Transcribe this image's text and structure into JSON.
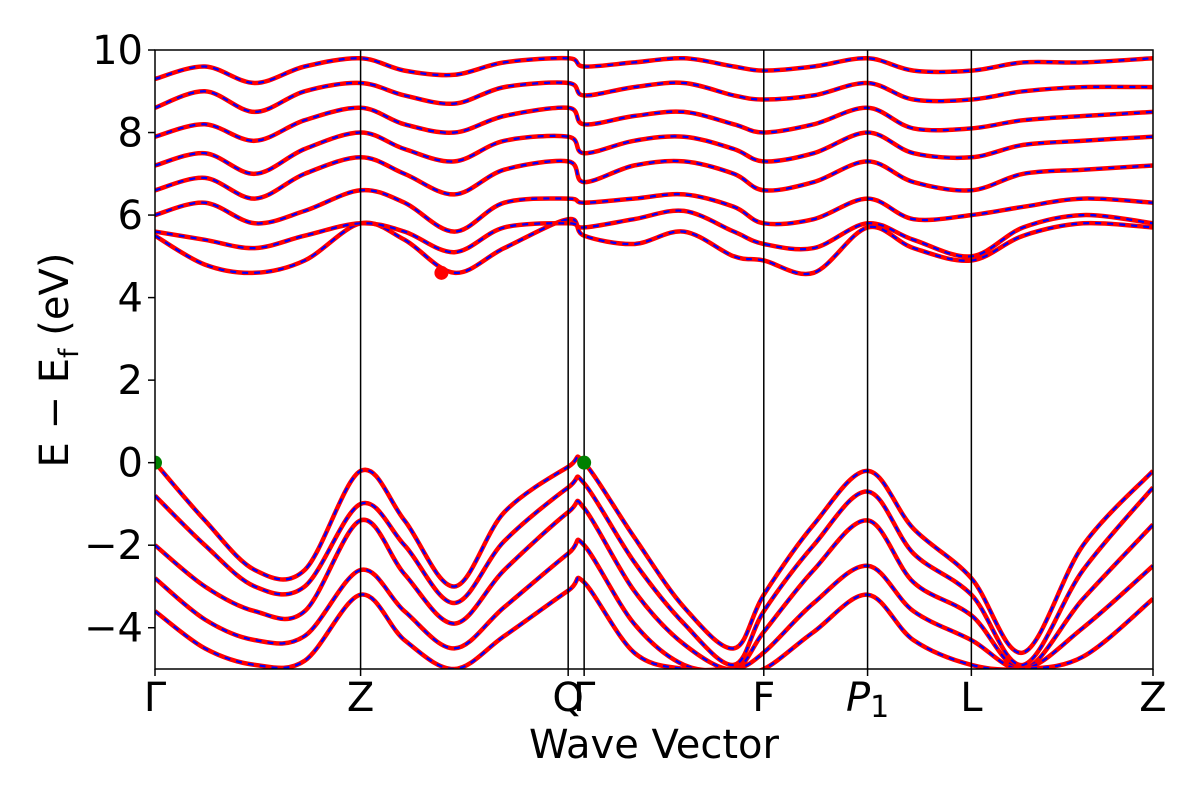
{
  "chart_data": {
    "type": "line",
    "title": "",
    "xlabel": "Wave Vector",
    "ylabel": "E − E_f (eV)",
    "ylabel_parts": {
      "main": "E − E",
      "sub": "f",
      "unit": " (eV)"
    },
    "ylim": [
      -5,
      10
    ],
    "yticks": [
      -4,
      -2,
      0,
      2,
      4,
      6,
      8,
      10
    ],
    "ytick_labels": [
      "−4",
      "−2",
      "0",
      "2",
      "4",
      "6",
      "8",
      "10"
    ],
    "kpath": [
      {
        "label": "Γ",
        "x": 0.0
      },
      {
        "label": "Z",
        "x": 0.206
      },
      {
        "label": "Q",
        "x": 0.414
      },
      {
        "label": "Γ",
        "x": 0.43
      },
      {
        "label": "F",
        "x": 0.61
      },
      {
        "label": "P",
        "label_sub": "1",
        "x": 0.714
      },
      {
        "label": "L",
        "x": 0.818
      },
      {
        "label": "Z",
        "x": 1.0
      }
    ],
    "series": [
      {
        "color": "#ff0000",
        "style": "solid"
      },
      {
        "color": "#0000ff",
        "style": "dashed"
      }
    ],
    "markers": [
      {
        "color": "#ff0000",
        "x": 0.287,
        "y": 4.6
      },
      {
        "color": "#008000",
        "x": 0.0,
        "y": 0.0
      },
      {
        "color": "#008000",
        "x": 0.43,
        "y": 0.0
      }
    ],
    "bands": [
      {
        "x": [
          0,
          0.05,
          0.1,
          0.15,
          0.206,
          0.25,
          0.3,
          0.35,
          0.414,
          0.43,
          0.48,
          0.53,
          0.58,
          0.61,
          0.66,
          0.714,
          0.76,
          0.818,
          0.87,
          0.93,
          1.0
        ],
        "y": [
          0.0,
          -1.4,
          -2.6,
          -2.6,
          -0.2,
          -1.4,
          -3.0,
          -1.2,
          -0.1,
          0.0,
          -1.8,
          -3.5,
          -4.5,
          -3.2,
          -1.5,
          -0.2,
          -1.6,
          -2.8,
          -4.6,
          -2.0,
          -0.2
        ]
      },
      {
        "x": [
          0,
          0.05,
          0.1,
          0.15,
          0.206,
          0.25,
          0.3,
          0.35,
          0.414,
          0.43,
          0.48,
          0.53,
          0.58,
          0.61,
          0.66,
          0.714,
          0.76,
          0.818,
          0.87,
          0.93,
          1.0
        ],
        "y": [
          -0.8,
          -2.0,
          -3.0,
          -3.0,
          -1.0,
          -2.0,
          -3.4,
          -1.9,
          -0.6,
          -0.5,
          -2.4,
          -3.9,
          -4.9,
          -3.6,
          -2.0,
          -0.7,
          -2.2,
          -3.2,
          -4.9,
          -2.6,
          -0.6
        ]
      },
      {
        "x": [
          0,
          0.05,
          0.1,
          0.15,
          0.206,
          0.25,
          0.3,
          0.35,
          0.414,
          0.43,
          0.48,
          0.53,
          0.58,
          0.61,
          0.66,
          0.714,
          0.76,
          0.818,
          0.87,
          0.93,
          1.0
        ],
        "y": [
          -2.0,
          -3.0,
          -3.6,
          -3.6,
          -1.4,
          -2.7,
          -3.9,
          -2.6,
          -1.2,
          -1.1,
          -3.1,
          -4.4,
          -5.0,
          -4.1,
          -2.6,
          -1.4,
          -2.9,
          -3.7,
          -5.0,
          -3.3,
          -1.5
        ]
      },
      {
        "x": [
          0,
          0.05,
          0.1,
          0.15,
          0.206,
          0.25,
          0.3,
          0.35,
          0.414,
          0.43,
          0.48,
          0.53,
          0.58,
          0.61,
          0.66,
          0.714,
          0.76,
          0.818,
          0.87,
          0.93,
          1.0
        ],
        "y": [
          -2.8,
          -3.8,
          -4.3,
          -4.2,
          -2.6,
          -3.6,
          -4.5,
          -3.5,
          -2.2,
          -2.0,
          -3.9,
          -4.9,
          -5.0,
          -4.6,
          -3.4,
          -2.5,
          -3.6,
          -4.3,
          -5.0,
          -4.0,
          -2.5
        ]
      },
      {
        "x": [
          0,
          0.05,
          0.1,
          0.15,
          0.206,
          0.25,
          0.3,
          0.35,
          0.414,
          0.43,
          0.48,
          0.53,
          0.58,
          0.61,
          0.66,
          0.714,
          0.76,
          0.818,
          0.87,
          0.93,
          1.0
        ],
        "y": [
          -3.6,
          -4.5,
          -4.9,
          -4.8,
          -3.2,
          -4.3,
          -5.0,
          -4.2,
          -3.1,
          -2.9,
          -4.6,
          -5.0,
          -5.0,
          -5.0,
          -4.1,
          -3.2,
          -4.3,
          -4.9,
          -5.0,
          -4.7,
          -3.3
        ]
      },
      {
        "x": [
          0,
          0.05,
          0.1,
          0.15,
          0.206,
          0.25,
          0.3,
          0.35,
          0.414,
          0.43,
          0.48,
          0.53,
          0.58,
          0.61,
          0.66,
          0.714,
          0.76,
          0.818,
          0.87,
          0.93,
          1.0
        ],
        "y": [
          5.5,
          4.8,
          4.6,
          4.9,
          5.8,
          5.4,
          4.6,
          5.2,
          5.9,
          5.5,
          5.3,
          5.6,
          5.0,
          4.9,
          4.6,
          5.7,
          5.2,
          4.9,
          5.5,
          5.8,
          5.7
        ]
      },
      {
        "x": [
          0,
          0.05,
          0.1,
          0.15,
          0.206,
          0.25,
          0.3,
          0.35,
          0.414,
          0.43,
          0.48,
          0.53,
          0.58,
          0.61,
          0.66,
          0.714,
          0.76,
          0.818,
          0.87,
          0.93,
          1.0
        ],
        "y": [
          5.6,
          5.4,
          5.2,
          5.5,
          5.8,
          5.6,
          5.1,
          5.7,
          5.8,
          5.7,
          5.9,
          6.1,
          5.6,
          5.3,
          5.2,
          5.8,
          5.4,
          5.0,
          5.7,
          6.0,
          5.8
        ]
      },
      {
        "x": [
          0,
          0.05,
          0.1,
          0.15,
          0.206,
          0.25,
          0.3,
          0.35,
          0.414,
          0.43,
          0.48,
          0.53,
          0.58,
          0.61,
          0.66,
          0.714,
          0.76,
          0.818,
          0.87,
          0.93,
          1.0
        ],
        "y": [
          6.0,
          6.3,
          5.8,
          6.1,
          6.6,
          6.3,
          5.6,
          6.3,
          6.4,
          6.3,
          6.4,
          6.5,
          6.2,
          5.8,
          5.9,
          6.4,
          5.9,
          6.0,
          6.2,
          6.4,
          6.3
        ]
      },
      {
        "x": [
          0,
          0.05,
          0.1,
          0.15,
          0.206,
          0.25,
          0.3,
          0.35,
          0.414,
          0.43,
          0.48,
          0.53,
          0.58,
          0.61,
          0.66,
          0.714,
          0.76,
          0.818,
          0.87,
          0.93,
          1.0
        ],
        "y": [
          6.6,
          6.9,
          6.4,
          7.0,
          7.4,
          7.0,
          6.5,
          7.1,
          7.3,
          6.8,
          7.2,
          7.3,
          7.0,
          6.6,
          6.8,
          7.3,
          6.8,
          6.6,
          7.0,
          7.1,
          7.2
        ]
      },
      {
        "x": [
          0,
          0.05,
          0.1,
          0.15,
          0.206,
          0.25,
          0.3,
          0.35,
          0.414,
          0.43,
          0.48,
          0.53,
          0.58,
          0.61,
          0.66,
          0.714,
          0.76,
          0.818,
          0.87,
          0.93,
          1.0
        ],
        "y": [
          7.2,
          7.5,
          7.0,
          7.6,
          8.0,
          7.6,
          7.3,
          7.8,
          7.9,
          7.5,
          7.8,
          7.9,
          7.6,
          7.3,
          7.5,
          8.0,
          7.5,
          7.4,
          7.7,
          7.8,
          7.9
        ]
      },
      {
        "x": [
          0,
          0.05,
          0.1,
          0.15,
          0.206,
          0.25,
          0.3,
          0.35,
          0.414,
          0.43,
          0.48,
          0.53,
          0.58,
          0.61,
          0.66,
          0.714,
          0.76,
          0.818,
          0.87,
          0.93,
          1.0
        ],
        "y": [
          7.9,
          8.2,
          7.8,
          8.3,
          8.6,
          8.2,
          8.0,
          8.4,
          8.6,
          8.2,
          8.4,
          8.5,
          8.2,
          8.0,
          8.2,
          8.6,
          8.1,
          8.1,
          8.3,
          8.4,
          8.5
        ]
      },
      {
        "x": [
          0,
          0.05,
          0.1,
          0.15,
          0.206,
          0.25,
          0.3,
          0.35,
          0.414,
          0.43,
          0.48,
          0.53,
          0.58,
          0.61,
          0.66,
          0.714,
          0.76,
          0.818,
          0.87,
          0.93,
          1.0
        ],
        "y": [
          8.6,
          9.0,
          8.5,
          9.0,
          9.2,
          8.9,
          8.7,
          9.1,
          9.2,
          8.9,
          9.1,
          9.2,
          8.9,
          8.8,
          8.9,
          9.2,
          8.8,
          8.8,
          9.0,
          9.1,
          9.1
        ]
      },
      {
        "x": [
          0,
          0.05,
          0.1,
          0.15,
          0.206,
          0.25,
          0.3,
          0.35,
          0.414,
          0.43,
          0.48,
          0.53,
          0.58,
          0.61,
          0.66,
          0.714,
          0.76,
          0.818,
          0.87,
          0.93,
          1.0
        ],
        "y": [
          9.3,
          9.6,
          9.2,
          9.6,
          9.8,
          9.5,
          9.4,
          9.7,
          9.8,
          9.6,
          9.7,
          9.8,
          9.6,
          9.5,
          9.6,
          9.8,
          9.5,
          9.5,
          9.7,
          9.7,
          9.8
        ]
      }
    ]
  }
}
